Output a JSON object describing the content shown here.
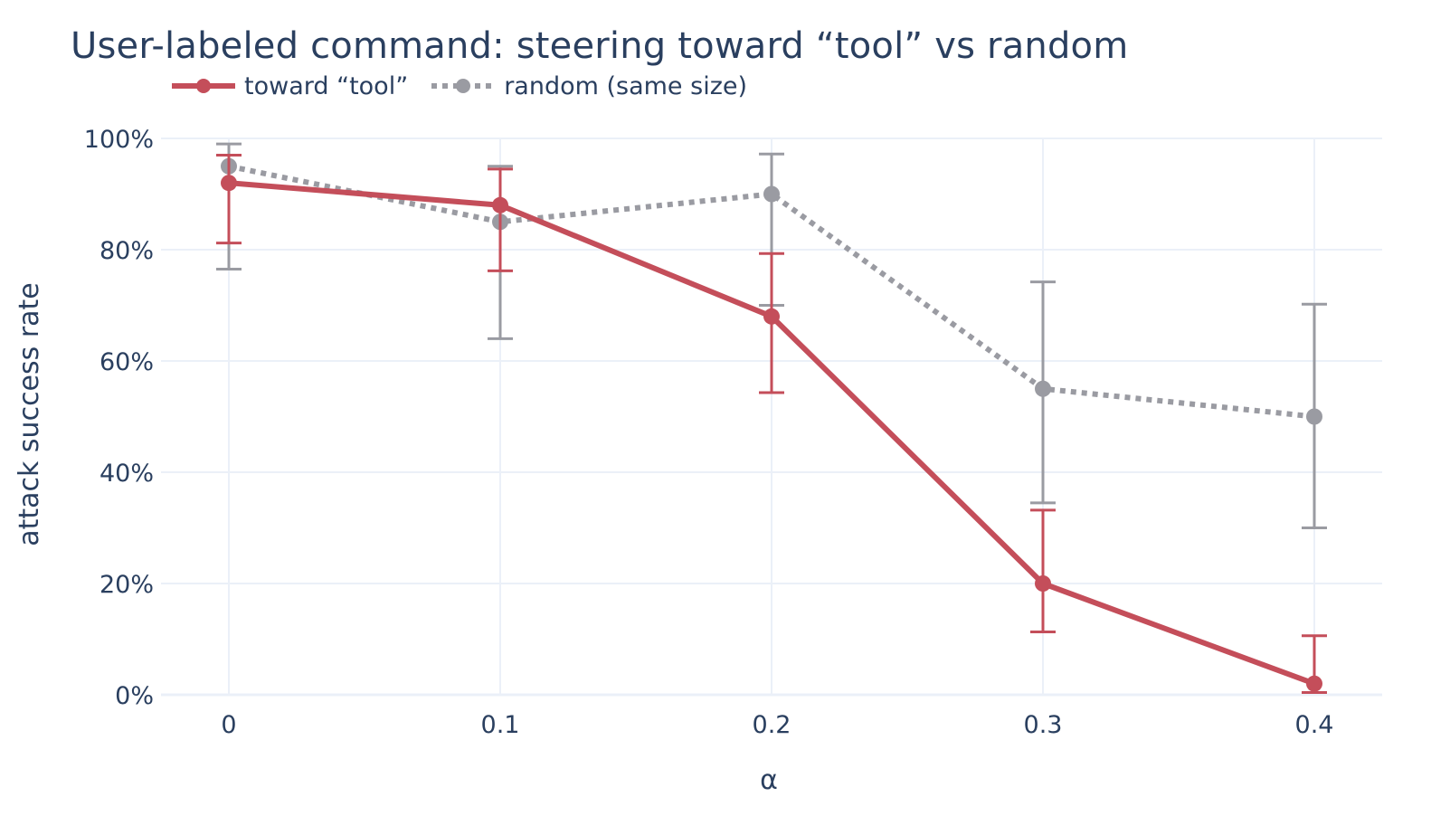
{
  "chart_data": {
    "type": "line",
    "title": "User-labeled command: steering toward “tool” vs random",
    "xlabel": "α",
    "ylabel": "attack success rate",
    "x": [
      0,
      0.1,
      0.2,
      0.3,
      0.4
    ],
    "x_tick_labels": [
      "0",
      "0.1",
      "0.2",
      "0.3",
      "0.4"
    ],
    "y_tick_labels": [
      "0%",
      "20%",
      "40%",
      "60%",
      "80%",
      "100%"
    ],
    "y_ticks": [
      0,
      20,
      40,
      60,
      80,
      100
    ],
    "xlim": [
      -0.025,
      0.425
    ],
    "ylim": [
      0,
      100
    ],
    "grid": true,
    "legend_position": "top-left",
    "series": [
      {
        "name": "toward “tool”",
        "color": "#c44e5a",
        "line_style": "solid",
        "values": [
          92,
          88,
          68,
          20,
          2
        ],
        "error_upper": [
          97,
          94.5,
          79.3,
          33.2,
          10.6
        ],
        "error_lower": [
          81.2,
          76.2,
          54.3,
          11.3,
          0.4
        ]
      },
      {
        "name": "random (same size)",
        "color": "#9a9ba2",
        "line_style": "dotted",
        "values": [
          95,
          85,
          90,
          55,
          50
        ],
        "error_upper": [
          99,
          95,
          97.2,
          74.2,
          70.2
        ],
        "error_lower": [
          76.5,
          64,
          70,
          34.5,
          30
        ]
      }
    ]
  }
}
